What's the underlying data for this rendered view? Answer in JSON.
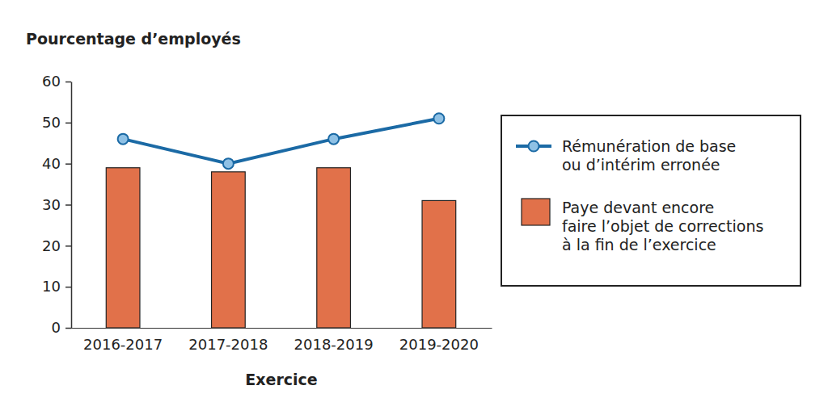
{
  "chart_data": {
    "type": "bar",
    "y_label": "Pourcentage d’employés",
    "x_label": "Exercice",
    "categories": [
      "2016-2017",
      "2017-2018",
      "2018-2019",
      "2019-2020"
    ],
    "series": [
      {
        "name": "Rémunération de base\nou d’intérim erronée",
        "type": "line",
        "marker": "circle",
        "color": "#1b6aa5",
        "values": [
          46,
          40,
          46,
          51
        ]
      },
      {
        "name": "Paye devant encore\nfaire l’objet de corrections\nà la fin de l’exercice",
        "type": "bar",
        "color": "#e1714a",
        "values": [
          39,
          38,
          39,
          31
        ]
      }
    ],
    "ylim": [
      0,
      60
    ],
    "yticks": [
      0,
      10,
      20,
      30,
      40,
      50,
      60
    ],
    "grid": false,
    "legend": "right"
  }
}
